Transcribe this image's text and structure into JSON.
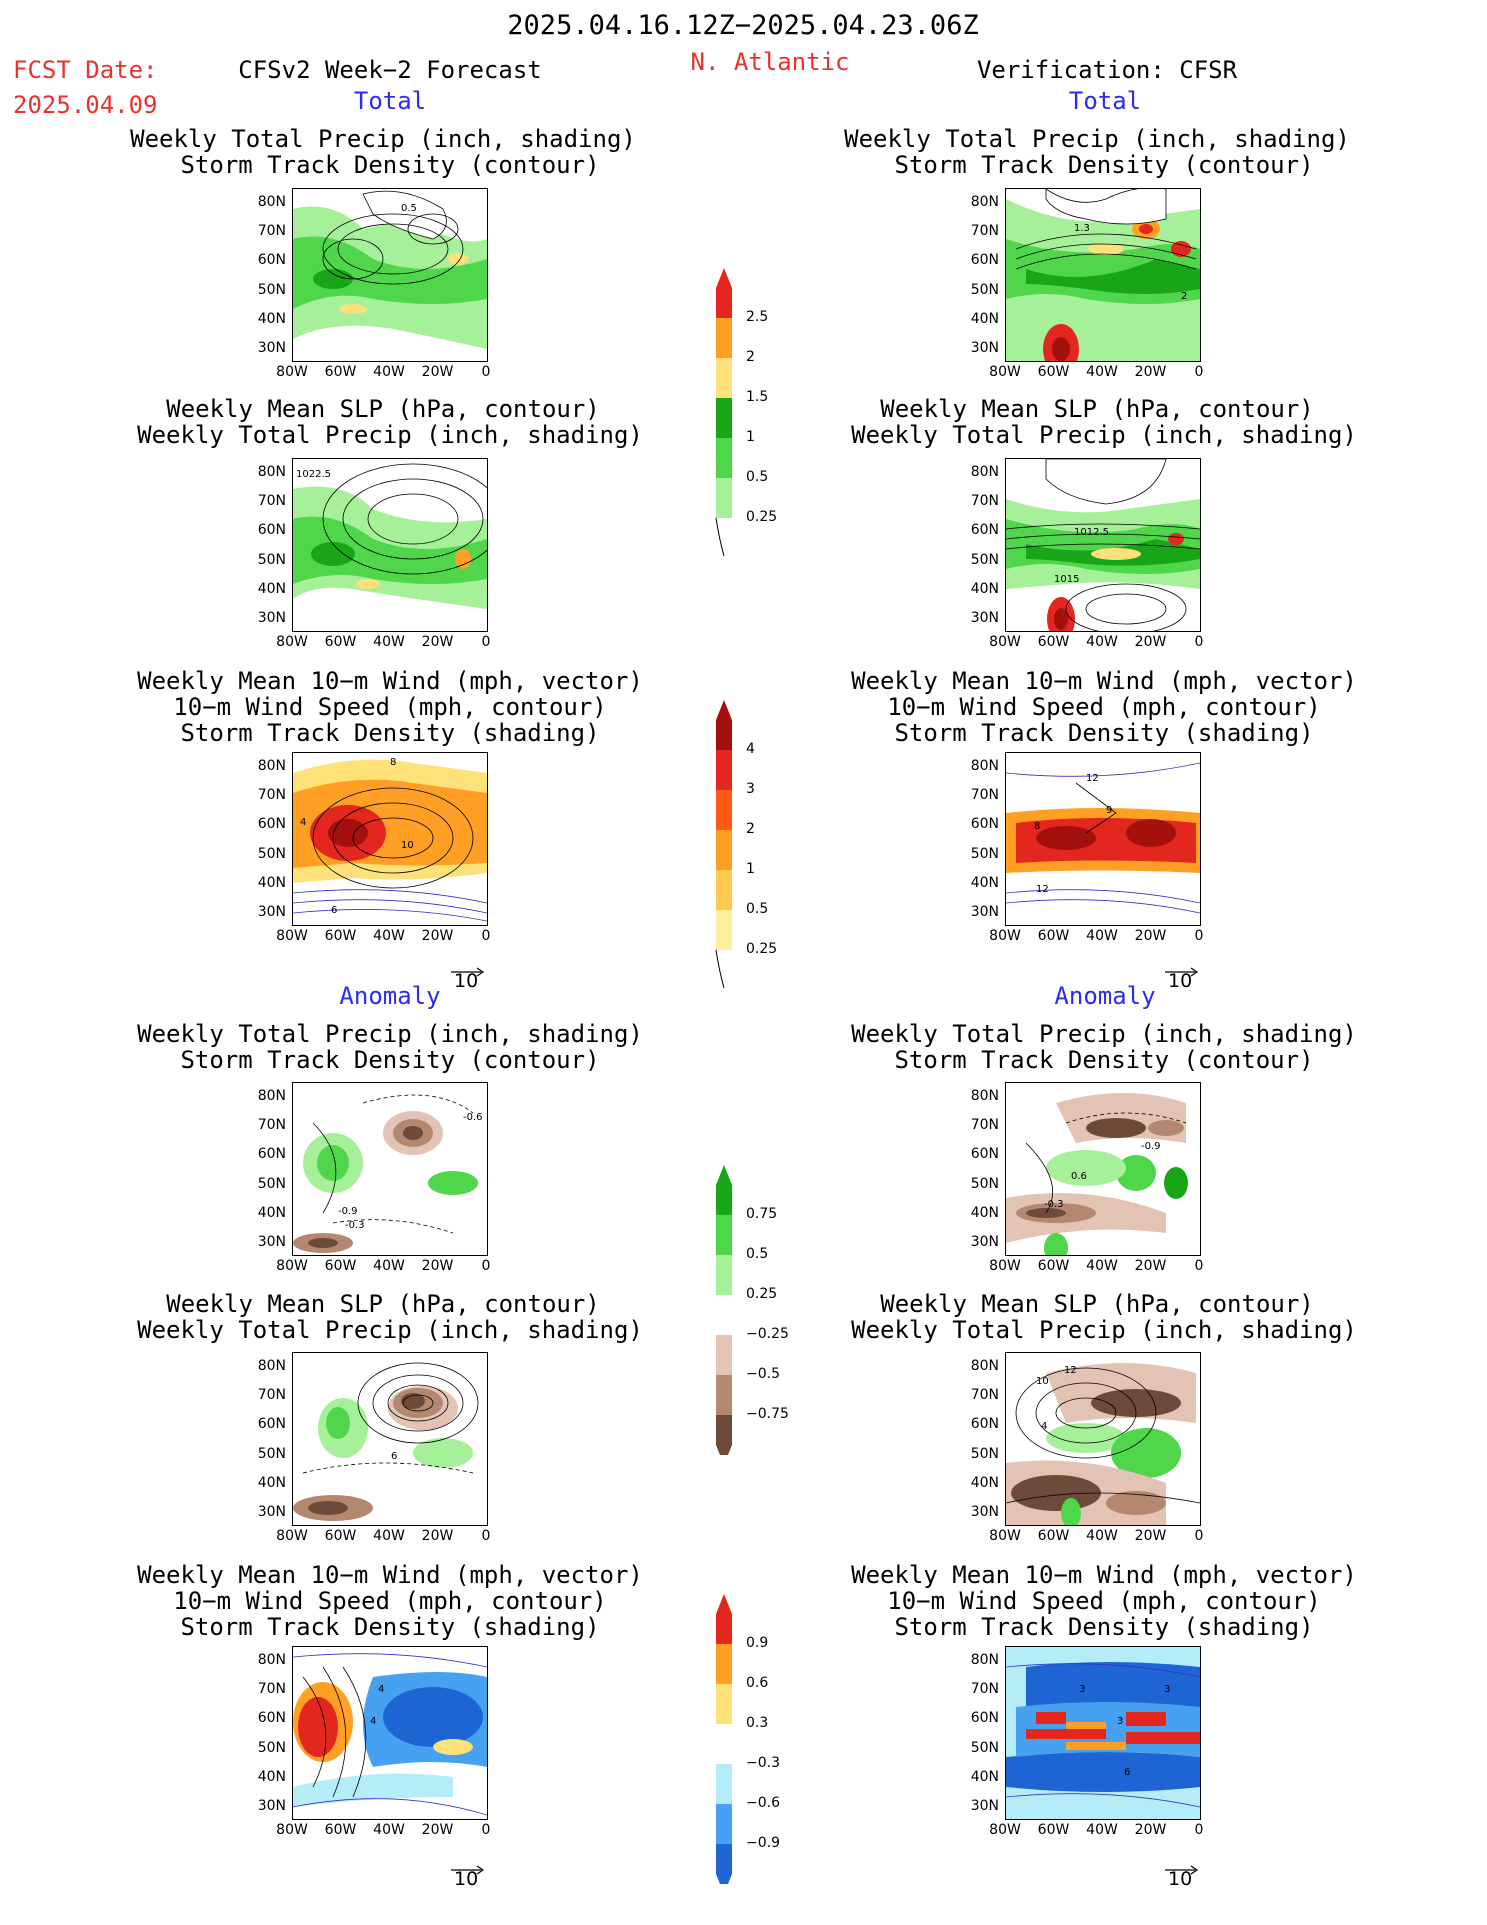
{
  "header": {
    "date_range": "2025.04.16.12Z−2025.04.23.06Z",
    "fcst_label": "FCST Date:",
    "fcst_date": "2025.04.09",
    "left_title": "CFSv2 Week−2 Forecast",
    "region": "N. Atlantic",
    "right_title": "Verification: CFSR"
  },
  "sections": {
    "total": "Total",
    "anomaly": "Anomaly"
  },
  "panel_titles": {
    "precip_storm": [
      "Weekly Total Precip (inch, shading)",
      "Storm Track Density (contour)"
    ],
    "slp_precip": [
      "Weekly Mean SLP (hPa, contour)",
      "Weekly Total Precip (inch, shading)"
    ],
    "wind_storm": [
      "Weekly Mean 10−m Wind (mph, vector)",
      "10−m Wind Speed (mph, contour)",
      "Storm Track Density (shading)"
    ]
  },
  "axes": {
    "lat_labels": [
      "80N",
      "70N",
      "60N",
      "50N",
      "40N",
      "30N"
    ],
    "lon_labels": [
      "80W",
      "60W",
      "40W",
      "20W",
      "0"
    ]
  },
  "vector_ref": "10",
  "contour_labels": {
    "f_total_storm": "0.5",
    "v_total_storm": [
      "1.3",
      "2"
    ],
    "f_total_slp": "1022.5",
    "v_total_slp": [
      "1012.5",
      "1015"
    ],
    "f_total_wind": [
      "8",
      "10",
      "4",
      "6"
    ],
    "v_total_wind": [
      "12",
      "9",
      "8",
      "12"
    ],
    "f_anom_storm": [
      "-0.6",
      "-0.9",
      "-0.3"
    ],
    "v_anom_storm": [
      "-0.9",
      "0.6",
      "-0.3"
    ],
    "f_anom_slp": "6",
    "v_anom_slp": [
      "10",
      "12",
      "4"
    ],
    "f_anom_wind": [
      "4",
      "4"
    ],
    "v_anom_wind": [
      "3",
      "3",
      "3",
      "6"
    ]
  },
  "colorbars": {
    "precip_total": [
      "2.5",
      "2",
      "1.5",
      "1",
      "0.5",
      "0.25"
    ],
    "storm_total": [
      "4",
      "3",
      "2",
      "1",
      "0.5",
      "0.25"
    ],
    "precip_anom": [
      "0.75",
      "0.5",
      "0.25",
      "−0.25",
      "−0.5",
      "−0.75"
    ],
    "storm_anom": [
      "0.9",
      "0.6",
      "0.3",
      "−0.3",
      "−0.6",
      "−0.9"
    ]
  },
  "colors": {
    "green_light": "#a6f09a",
    "green": "#4fd64a",
    "green_dark": "#18a618",
    "yellow": "#ffe17a",
    "orange": "#ffa024",
    "red": "#e3261e",
    "dark_red": "#a3100e",
    "brown_light": "#e3c4b4",
    "brown": "#b48870",
    "brown_dark": "#6e4a3a",
    "blue_light": "#b4ecf8",
    "blue": "#46a2f0",
    "blue_dark": "#1e64d2",
    "contour_blue": "#3232c8"
  }
}
